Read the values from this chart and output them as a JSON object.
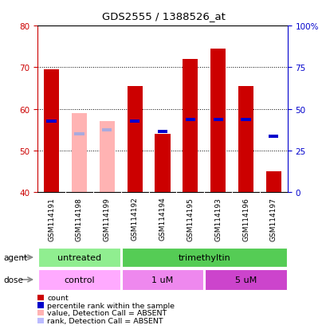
{
  "title": "GDS2555 / 1388526_at",
  "samples": [
    "GSM114191",
    "GSM114198",
    "GSM114199",
    "GSM114192",
    "GSM114194",
    "GSM114195",
    "GSM114193",
    "GSM114196",
    "GSM114197"
  ],
  "ylim": [
    40,
    80
  ],
  "yticks_left": [
    40,
    50,
    60,
    70,
    80
  ],
  "y_right_labels": [
    "0",
    "25",
    "50",
    "75",
    "100%"
  ],
  "bar_bottom": 40,
  "bar_width": 0.55,
  "red_bars": [
    69.5,
    0,
    0,
    65.5,
    54.0,
    72.0,
    74.5,
    65.5,
    45.0
  ],
  "pink_bars": [
    0,
    59.0,
    57.0,
    0,
    0,
    0,
    0,
    0,
    0
  ],
  "blue_squares_y": [
    57.0,
    0,
    0,
    57.0,
    54.5,
    57.5,
    57.5,
    57.5,
    0
  ],
  "light_blue_squares_y": [
    0,
    54.0,
    55.0,
    0,
    0,
    0,
    0,
    0,
    0
  ],
  "standalone_blue_y": [
    0,
    0,
    0,
    0,
    0,
    0,
    0,
    0,
    53.5
  ],
  "tick_label_color_left": "#CC0000",
  "tick_label_color_right": "#0000CC",
  "sample_area_color": "#C8C8C8",
  "agent_regions": [
    {
      "start": 0,
      "end": 3,
      "text": "untreated",
      "color": "#90EE90"
    },
    {
      "start": 3,
      "end": 9,
      "text": "trimethyltin",
      "color": "#55CC55"
    }
  ],
  "dose_regions": [
    {
      "start": 0,
      "end": 3,
      "text": "control",
      "color": "#FFAAFF"
    },
    {
      "start": 3,
      "end": 6,
      "text": "1 uM",
      "color": "#EE88EE"
    },
    {
      "start": 6,
      "end": 9,
      "text": "5 uM",
      "color": "#CC44CC"
    }
  ],
  "legend_items": [
    {
      "color": "#CC0000",
      "label": "count"
    },
    {
      "color": "#0000CC",
      "label": "percentile rank within the sample"
    },
    {
      "color": "#FFB3B3",
      "label": "value, Detection Call = ABSENT"
    },
    {
      "color": "#BBBBFF",
      "label": "rank, Detection Call = ABSENT"
    }
  ]
}
